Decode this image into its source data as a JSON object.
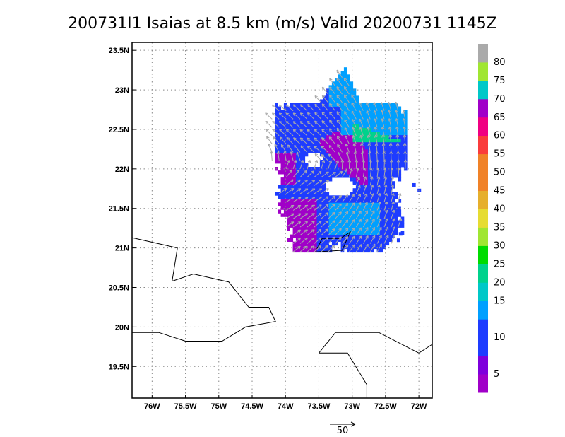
{
  "title": "200731I1 Isaias at 8.5 km (m/s) Valid 20200731 1145Z",
  "map": {
    "lon_range": [
      -76.3,
      -71.8
    ],
    "lat_range": [
      19.1,
      23.6
    ],
    "lon_ticks": [
      {
        "value": -76.0,
        "label": "76W"
      },
      {
        "value": -75.5,
        "label": "75.5W"
      },
      {
        "value": -75.0,
        "label": "75W"
      },
      {
        "value": -74.5,
        "label": "74.5W"
      },
      {
        "value": -74.0,
        "label": "74W"
      },
      {
        "value": -73.5,
        "label": "73.5W"
      },
      {
        "value": -73.0,
        "label": "73W"
      },
      {
        "value": -72.5,
        "label": "72.5W"
      },
      {
        "value": -72.0,
        "label": "72W"
      }
    ],
    "lat_ticks": [
      {
        "value": 19.5,
        "label": "19.5N"
      },
      {
        "value": 20.0,
        "label": "20N"
      },
      {
        "value": 20.5,
        "label": "20.5N"
      },
      {
        "value": 21.0,
        "label": "21N"
      },
      {
        "value": 21.5,
        "label": "21.5N"
      },
      {
        "value": 22.0,
        "label": "22N"
      },
      {
        "value": 22.5,
        "label": "22.5N"
      },
      {
        "value": 23.0,
        "label": "23N"
      },
      {
        "value": 23.5,
        "label": "23.5N"
      }
    ],
    "grid": true,
    "coastlines": [
      [
        [
          -76.3,
          21.13
        ],
        [
          -75.62,
          21.0
        ],
        [
          -75.7,
          20.58
        ],
        [
          -75.38,
          20.67
        ],
        [
          -74.85,
          20.57
        ],
        [
          -74.55,
          20.25
        ],
        [
          -74.25,
          20.25
        ],
        [
          -74.15,
          20.07
        ],
        [
          -74.6,
          20.0
        ],
        [
          -74.95,
          19.82
        ],
        [
          -75.5,
          19.82
        ],
        [
          -75.9,
          19.93
        ],
        [
          -76.3,
          19.93
        ]
      ],
      [
        [
          -73.5,
          19.67
        ],
        [
          -73.25,
          19.93
        ],
        [
          -72.6,
          19.93
        ],
        [
          -72.0,
          19.67
        ],
        [
          -71.8,
          19.78
        ]
      ],
      [
        [
          -73.5,
          19.67
        ],
        [
          -73.07,
          19.67
        ],
        [
          -72.78,
          19.27
        ],
        [
          -72.78,
          19.1
        ]
      ],
      [
        [
          -73.45,
          21.12
        ],
        [
          -73.55,
          20.95
        ],
        [
          -73.15,
          20.97
        ],
        [
          -73.03,
          21.2
        ],
        [
          -73.18,
          21.12
        ],
        [
          -73.45,
          21.12
        ]
      ]
    ],
    "wind_field_description_free": true
  },
  "colorbar": {
    "unit": "m/s",
    "levels": [
      {
        "label": "5",
        "color": "#a000c8"
      },
      {
        "label": "",
        "color": "#7e00dc"
      },
      {
        "label": "10",
        "color": "#1e3cff"
      },
      {
        "label": "",
        "color": "#1e3cff"
      },
      {
        "label": "15",
        "color": "#00a0ff"
      },
      {
        "label": "20",
        "color": "#00c8c8"
      },
      {
        "label": "25",
        "color": "#00d28c"
      },
      {
        "label": "30",
        "color": "#00dc00"
      },
      {
        "label": "35",
        "color": "#a0e632"
      },
      {
        "label": "40",
        "color": "#e6dc32"
      },
      {
        "label": "45",
        "color": "#e6af2d"
      },
      {
        "label": "50",
        "color": "#f08228"
      },
      {
        "label": "55",
        "color": "#f08228"
      },
      {
        "label": "60",
        "color": "#fa3c3c"
      },
      {
        "label": "65",
        "color": "#f00082"
      },
      {
        "label": "70",
        "color": "#a000c8"
      },
      {
        "label": "75",
        "color": "#00c8c8"
      },
      {
        "label": "80",
        "color": "#a0e632"
      },
      {
        "label": "",
        "color": "#aaaaaa"
      }
    ]
  },
  "reference_vector": {
    "label": "50"
  },
  "colors": {
    "purple": "#a000c8",
    "blue": "#1e3cff",
    "lightblue": "#00a0ff",
    "cyan": "#00c8c8",
    "teal": "#00d28c",
    "arrow": "#aaaaaa"
  }
}
